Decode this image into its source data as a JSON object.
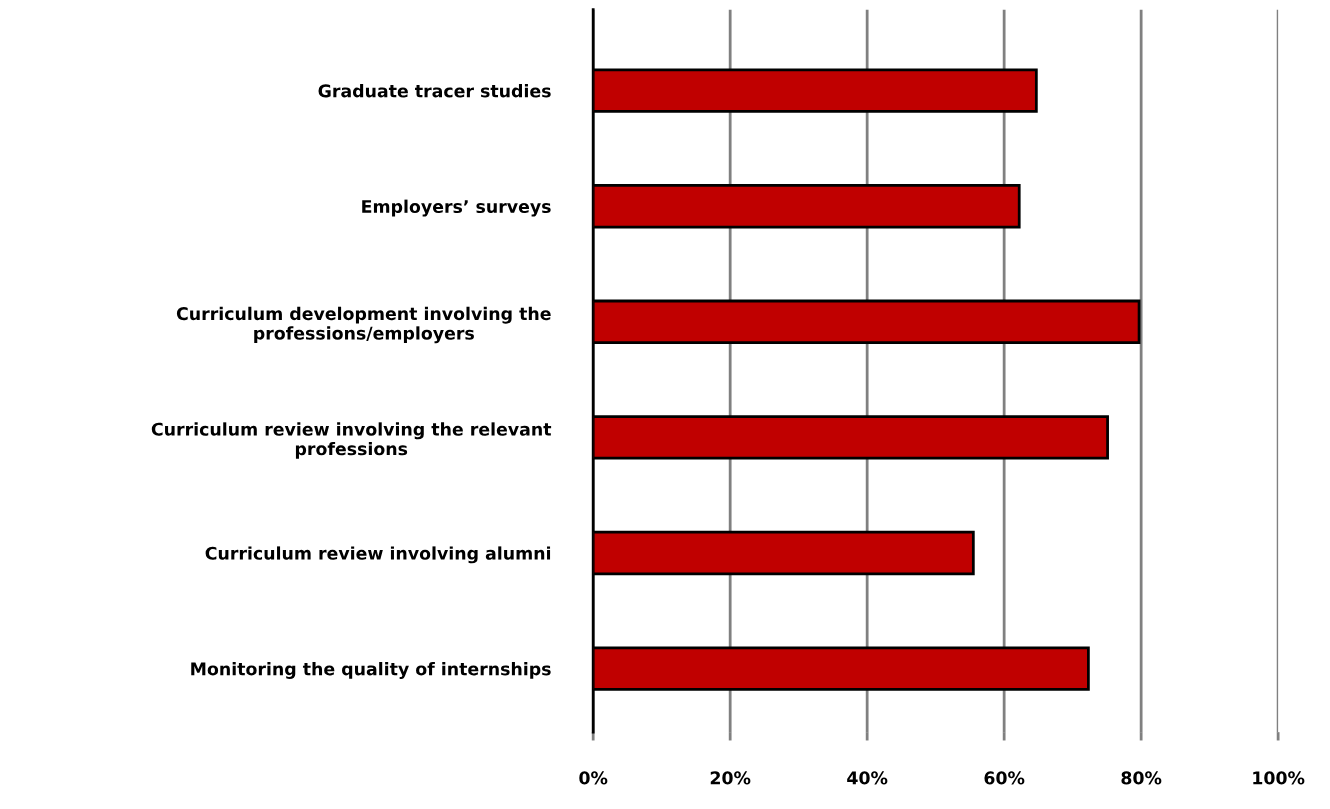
{
  "chart_data": {
    "type": "bar",
    "orientation": "horizontal",
    "categories": [
      "Graduate tracer studies",
      "Employers’ surveys",
      "Curriculum development involving the professions/employers",
      "Curriculum review involving the relevant professions",
      "Curriculum review involving alumni",
      "Monitoring the quality of internships"
    ],
    "values": [
      64.7,
      62.2,
      79.7,
      75.1,
      55.5,
      72.3
    ],
    "color": "#c00000",
    "xlim": [
      0,
      100
    ],
    "xticks": [
      {
        "value": 0,
        "label": "0%"
      },
      {
        "value": 20,
        "label": "20%"
      },
      {
        "value": 40,
        "label": "40%"
      },
      {
        "value": 60,
        "label": "60%"
      },
      {
        "value": 80,
        "label": "80%"
      },
      {
        "value": 100,
        "label": "100%"
      }
    ],
    "grid": "x"
  }
}
